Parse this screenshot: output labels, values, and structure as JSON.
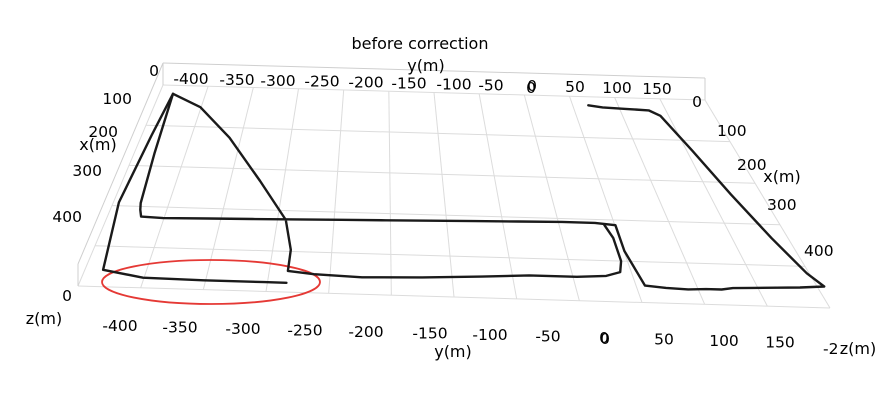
{
  "chart_data": {
    "type": "line3d",
    "title": "before correction",
    "xlabel": "x(m)",
    "ylabel": "y(m)",
    "zlabel": "z(m)",
    "y_ticks_top": [
      "-400",
      "-350",
      "-300",
      "-250",
      "-200",
      "-150",
      "-100",
      "-50",
      "0",
      "50",
      "100",
      "150"
    ],
    "y_ticks_bottom": [
      "-400",
      "-350",
      "-300",
      "-250",
      "-200",
      "-150",
      "-100",
      "-50",
      "0",
      "50",
      "100",
      "150"
    ],
    "x_ticks_left": [
      "100",
      "200",
      "300",
      "400"
    ],
    "x_ticks_right": [
      "100",
      "200",
      "300",
      "400"
    ],
    "z_ticks": [
      "0",
      "0",
      "0",
      "0",
      "0"
    ],
    "z_tick_right": "-2",
    "highlight_color": "#e53935",
    "line_color": "#1a1a1a",
    "grid": true,
    "series": [
      {
        "points": [
          [
            45,
            10
          ],
          [
            60,
            12
          ],
          [
            85,
            13
          ],
          [
            110,
            14
          ],
          [
            120,
            20
          ],
          [
            135,
            60
          ],
          [
            150,
            110
          ],
          [
            165,
            160
          ],
          [
            178,
            200
          ],
          [
            186,
            215
          ],
          [
            165,
            217
          ],
          [
            145,
            218
          ],
          [
            125,
            219
          ],
          [
            108,
            220
          ],
          [
            98,
            222
          ],
          [
            85,
            222
          ],
          [
            70,
            223
          ],
          [
            52,
            222
          ],
          [
            35,
            220
          ],
          [
            28,
            180
          ],
          [
            28,
            150
          ],
          [
            10,
            148
          ],
          [
            -20,
            148
          ],
          [
            -60,
            149
          ],
          [
            -100,
            150
          ],
          [
            -140,
            151
          ],
          [
            -180,
            152
          ],
          [
            -220,
            153
          ],
          [
            -260,
            154
          ],
          [
            -300,
            155
          ],
          [
            -340,
            156
          ],
          [
            -380,
            157
          ],
          [
            -400,
            156
          ],
          [
            -403,
            148
          ],
          [
            -405,
            140
          ],
          [
            -410,
            80
          ],
          [
            -415,
            10
          ],
          [
            -380,
            25
          ],
          [
            -340,
            60
          ],
          [
            -300,
            110
          ],
          [
            -270,
            155
          ],
          [
            -262,
            190
          ],
          [
            -262,
            215
          ],
          [
            -240,
            218
          ],
          [
            -200,
            220
          ],
          [
            -150,
            218
          ],
          [
            -100,
            215
          ],
          [
            -60,
            212
          ],
          [
            -20,
            212
          ],
          [
            5,
            210
          ],
          [
            18,
            205
          ],
          [
            22,
            192
          ],
          [
            22,
            165
          ],
          [
            18,
            150
          ]
        ]
      },
      {
        "points": [
          [
            -415,
            10
          ],
          [
            -420,
            60
          ],
          [
            -425,
            140
          ],
          [
            -415,
            220
          ],
          [
            -380,
            228
          ],
          [
            -330,
            229
          ],
          [
            -280,
            229
          ],
          [
            -262,
            229
          ]
        ]
      }
    ]
  }
}
